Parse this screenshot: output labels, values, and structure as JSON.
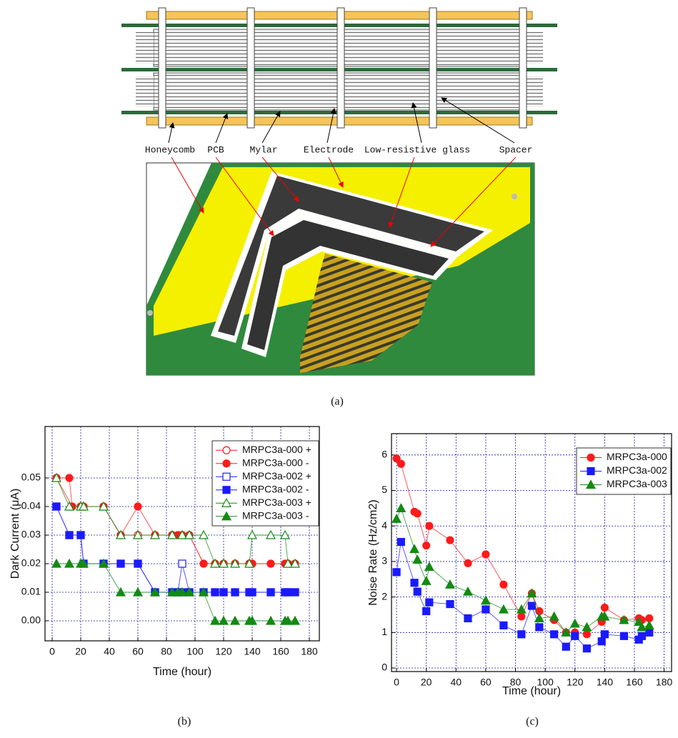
{
  "diagram": {
    "labels": [
      "Honeycomb",
      "PCB",
      "Mylar",
      "Electrode",
      "Low-resistive glass",
      "Spacer"
    ],
    "caption": "(a)"
  },
  "chart_data": [
    {
      "type": "line",
      "caption": "(b)",
      "xlabel": "Time (hour)",
      "ylabel": "Dark Current (μA)",
      "xlim": [
        -5,
        187
      ],
      "ylim": [
        -0.007,
        0.068
      ],
      "xticks": [
        0,
        20,
        40,
        60,
        80,
        100,
        120,
        140,
        160,
        180
      ],
      "yticks": [
        {
          "value": 0,
          "label": "0.00"
        },
        0.01,
        0.02,
        0.03,
        0.04,
        0.05
      ],
      "grid": true,
      "legend": "upper right",
      "series": [
        {
          "name": "MRPC3a-000 +",
          "color": "#ff1a1a",
          "marker": "circle",
          "filled": false,
          "x": [
            3,
            14,
            20,
            22,
            36,
            48,
            60,
            72,
            84,
            88,
            91,
            96,
            106,
            114,
            120,
            128,
            138,
            140,
            153,
            163,
            165,
            170
          ],
          "values": [
            0.05,
            0.04,
            0.04,
            0.04,
            0.04,
            0.03,
            0.03,
            0.03,
            0.03,
            0.03,
            0.03,
            0.03,
            0.02,
            0.02,
            0.02,
            0.02,
            0.02,
            0.02,
            0.02,
            0.02,
            0.02,
            0.02
          ]
        },
        {
          "name": "MRPC3a-000 -",
          "color": "#ff1a1a",
          "marker": "circle",
          "filled": true,
          "x": [
            3,
            12,
            14,
            20,
            22,
            36,
            48,
            60,
            72,
            84,
            88,
            91,
            96,
            106,
            114,
            120,
            128,
            138,
            140,
            153,
            163,
            165,
            170
          ],
          "values": [
            0.05,
            0.05,
            0.04,
            0.04,
            0.04,
            0.04,
            0.03,
            0.04,
            0.03,
            0.03,
            0.03,
            0.03,
            0.03,
            0.02,
            0.02,
            0.02,
            0.02,
            0.02,
            0.02,
            0.02,
            0.02,
            0.02,
            0.02
          ]
        },
        {
          "name": "MRPC3a-002 +",
          "color": "#1a1aff",
          "marker": "square",
          "filled": false,
          "x": [
            3,
            12,
            20,
            22,
            36,
            48,
            60,
            72,
            84,
            88,
            91,
            96,
            106,
            114,
            120,
            128,
            138,
            140,
            153,
            163,
            165,
            170
          ],
          "values": [
            0.04,
            0.03,
            0.03,
            0.02,
            0.02,
            0.02,
            0.02,
            0.01,
            0.01,
            0.01,
            0.02,
            0.01,
            0.01,
            0.01,
            0.01,
            0.01,
            0.01,
            0.01,
            0.01,
            0.01,
            0.01,
            0.01
          ]
        },
        {
          "name": "MRPC3a-002 -",
          "color": "#1a1aff",
          "marker": "square",
          "filled": true,
          "x": [
            3,
            12,
            20,
            22,
            36,
            48,
            60,
            72,
            84,
            88,
            91,
            96,
            106,
            114,
            120,
            128,
            138,
            140,
            153,
            163,
            165,
            170
          ],
          "values": [
            0.04,
            0.03,
            0.03,
            0.02,
            0.02,
            0.02,
            0.02,
            0.01,
            0.01,
            0.01,
            0.01,
            0.01,
            0.01,
            0.01,
            0.01,
            0.01,
            0.01,
            0.01,
            0.01,
            0.01,
            0.01,
            0.01
          ]
        },
        {
          "name": "MRPC3a-003 +",
          "color": "#138a13",
          "marker": "triangle",
          "filled": false,
          "x": [
            3,
            12,
            20,
            22,
            36,
            48,
            60,
            72,
            84,
            91,
            96,
            106,
            114,
            120,
            128,
            138,
            140,
            153,
            163,
            165,
            170
          ],
          "values": [
            0.05,
            0.04,
            0.04,
            0.04,
            0.04,
            0.03,
            0.03,
            0.03,
            0.03,
            0.03,
            0.03,
            0.03,
            0.02,
            0.02,
            0.02,
            0.02,
            0.03,
            0.03,
            0.03,
            0.02,
            0.02
          ]
        },
        {
          "name": "MRPC3a-003 -",
          "color": "#138a13",
          "marker": "triangle",
          "filled": true,
          "x": [
            3,
            12,
            20,
            22,
            36,
            48,
            60,
            72,
            84,
            88,
            91,
            96,
            106,
            114,
            120,
            128,
            138,
            140,
            153,
            163,
            165,
            170
          ],
          "values": [
            0.02,
            0.02,
            0.02,
            0.02,
            0.02,
            0.01,
            0.01,
            0.01,
            0.01,
            0.01,
            0.01,
            0.01,
            0.01,
            0,
            0,
            0,
            0,
            0,
            0,
            0,
            0,
            0
          ]
        }
      ]
    },
    {
      "type": "line",
      "caption": "(c)",
      "xlabel": "Time (hour)",
      "ylabel": "Noise Rate (Hz/cm2)",
      "xlim": [
        -3.4,
        185
      ],
      "ylim": [
        -0.1,
        6.6
      ],
      "xticks": [
        0,
        20,
        40,
        60,
        80,
        100,
        120,
        140,
        160,
        180
      ],
      "yticks": [
        0,
        1,
        2,
        3,
        4,
        5,
        6
      ],
      "grid": true,
      "legend": "upper right",
      "x": [
        0,
        3,
        12,
        14,
        20,
        22,
        36,
        48,
        60,
        72,
        84,
        91,
        96,
        106,
        114,
        120,
        128,
        138,
        140,
        153,
        163,
        165,
        170
      ],
      "series": [
        {
          "name": "MRPC3a-000",
          "color": "#ff1a1a",
          "marker": "circle",
          "filled": true,
          "values": [
            5.9,
            5.75,
            4.4,
            4.35,
            3.45,
            4.0,
            3.6,
            2.95,
            3.2,
            2.35,
            1.45,
            2.1,
            1.6,
            1.35,
            1.0,
            1.0,
            0.95,
            1.3,
            1.7,
            1.35,
            1.4,
            1.35,
            1.4
          ]
        },
        {
          "name": "MRPC3a-002",
          "color": "#1a1aff",
          "marker": "square",
          "filled": true,
          "values": [
            2.7,
            3.55,
            2.4,
            2.15,
            1.6,
            1.85,
            1.8,
            1.4,
            1.65,
            1.2,
            0.95,
            1.75,
            1.15,
            0.95,
            0.6,
            0.9,
            0.55,
            0.75,
            0.95,
            0.9,
            0.8,
            0.9,
            1.0
          ]
        },
        {
          "name": "MRPC3a-003",
          "color": "#138a13",
          "marker": "triangle",
          "filled": true,
          "values": [
            4.2,
            4.5,
            3.35,
            3.05,
            2.45,
            2.85,
            2.35,
            2.15,
            1.9,
            1.65,
            1.65,
            2.1,
            1.4,
            1.45,
            1.0,
            1.25,
            1.15,
            1.45,
            1.45,
            1.35,
            1.3,
            1.15,
            1.2
          ]
        }
      ]
    }
  ]
}
